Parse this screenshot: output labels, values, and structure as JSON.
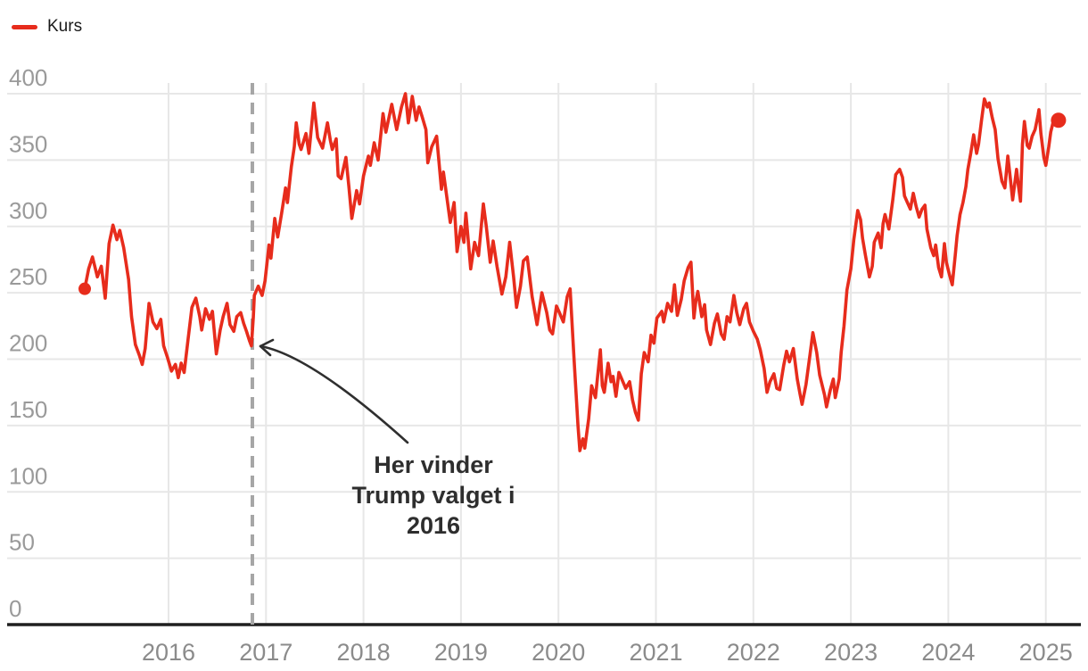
{
  "legend": {
    "label": "Kurs"
  },
  "annotation": {
    "lines": [
      "Her vinder",
      "Trump valget i",
      "2016"
    ]
  },
  "colors": {
    "series": "#e72c1c",
    "event_line": "#a6a6a6",
    "grid": "#e7e7e7",
    "axis": "#1f1f1f",
    "y_tick": "#9a9a9a",
    "x_tick": "#8b8b8b",
    "annotation_text": "#2e2e2e",
    "arrow": "#2f2f2f",
    "background": "#ffffff"
  },
  "chart_data": {
    "type": "line",
    "title": "",
    "xlabel": "",
    "ylabel": "",
    "x_ticks": [
      2016,
      2017,
      2018,
      2019,
      2020,
      2021,
      2022,
      2023,
      2024,
      2025
    ],
    "y_ticks": [
      0,
      50,
      100,
      150,
      200,
      250,
      300,
      350,
      400
    ],
    "ylim": [
      0,
      400
    ],
    "xlim": [
      2014.35,
      2025.36
    ],
    "grid": true,
    "legend_position": "top-left",
    "event_line_x": 2016.86,
    "start_marker": true,
    "end_marker": true,
    "series": [
      {
        "name": "Kurs",
        "color": "#e72c1c",
        "points": [
          [
            2015.14,
            253
          ],
          [
            2015.18,
            268
          ],
          [
            2015.22,
            277
          ],
          [
            2015.27,
            262
          ],
          [
            2015.31,
            270
          ],
          [
            2015.35,
            246
          ],
          [
            2015.39,
            287
          ],
          [
            2015.43,
            301
          ],
          [
            2015.47,
            290
          ],
          [
            2015.5,
            297
          ],
          [
            2015.54,
            284
          ],
          [
            2015.59,
            260
          ],
          [
            2015.62,
            232
          ],
          [
            2015.66,
            211
          ],
          [
            2015.7,
            203
          ],
          [
            2015.73,
            196
          ],
          [
            2015.76,
            208
          ],
          [
            2015.8,
            242
          ],
          [
            2015.84,
            228
          ],
          [
            2015.88,
            223
          ],
          [
            2015.92,
            230
          ],
          [
            2015.95,
            210
          ],
          [
            2015.99,
            201
          ],
          [
            2016.03,
            191
          ],
          [
            2016.07,
            196
          ],
          [
            2016.1,
            186
          ],
          [
            2016.13,
            197
          ],
          [
            2016.16,
            190
          ],
          [
            2016.2,
            215
          ],
          [
            2016.24,
            239
          ],
          [
            2016.28,
            246
          ],
          [
            2016.32,
            232
          ],
          [
            2016.34,
            222
          ],
          [
            2016.38,
            238
          ],
          [
            2016.42,
            230
          ],
          [
            2016.45,
            236
          ],
          [
            2016.49,
            204
          ],
          [
            2016.53,
            222
          ],
          [
            2016.56,
            232
          ],
          [
            2016.6,
            242
          ],
          [
            2016.63,
            226
          ],
          [
            2016.67,
            221
          ],
          [
            2016.7,
            232
          ],
          [
            2016.74,
            235
          ],
          [
            2016.77,
            227
          ],
          [
            2016.8,
            221
          ],
          [
            2016.83,
            214
          ],
          [
            2016.85,
            210
          ],
          [
            2016.87,
            232
          ],
          [
            2016.88,
            248
          ],
          [
            2016.92,
            255
          ],
          [
            2016.96,
            248
          ],
          [
            2016.99,
            259
          ],
          [
            2017.03,
            286
          ],
          [
            2017.05,
            276
          ],
          [
            2017.09,
            306
          ],
          [
            2017.12,
            292
          ],
          [
            2017.16,
            310
          ],
          [
            2017.2,
            329
          ],
          [
            2017.22,
            318
          ],
          [
            2017.26,
            345
          ],
          [
            2017.29,
            360
          ],
          [
            2017.31,
            378
          ],
          [
            2017.34,
            362
          ],
          [
            2017.36,
            358
          ],
          [
            2017.41,
            370
          ],
          [
            2017.44,
            355
          ],
          [
            2017.49,
            393
          ],
          [
            2017.53,
            367
          ],
          [
            2017.58,
            359
          ],
          [
            2017.63,
            378
          ],
          [
            2017.66,
            365
          ],
          [
            2017.68,
            358
          ],
          [
            2017.72,
            366
          ],
          [
            2017.74,
            338
          ],
          [
            2017.77,
            336
          ],
          [
            2017.82,
            352
          ],
          [
            2017.85,
            330
          ],
          [
            2017.88,
            306
          ],
          [
            2017.93,
            327
          ],
          [
            2017.96,
            317
          ],
          [
            2018,
            338
          ],
          [
            2018.05,
            353
          ],
          [
            2018.07,
            346
          ],
          [
            2018.11,
            363
          ],
          [
            2018.15,
            350
          ],
          [
            2018.2,
            385
          ],
          [
            2018.23,
            371
          ],
          [
            2018.29,
            392
          ],
          [
            2018.34,
            373
          ],
          [
            2018.39,
            390
          ],
          [
            2018.43,
            400
          ],
          [
            2018.46,
            378
          ],
          [
            2018.5,
            398
          ],
          [
            2018.54,
            380
          ],
          [
            2018.57,
            390
          ],
          [
            2018.6,
            383
          ],
          [
            2018.64,
            373
          ],
          [
            2018.66,
            348
          ],
          [
            2018.7,
            360
          ],
          [
            2018.75,
            368
          ],
          [
            2018.8,
            328
          ],
          [
            2018.82,
            341
          ],
          [
            2018.89,
            303
          ],
          [
            2018.93,
            318
          ],
          [
            2018.96,
            281
          ],
          [
            2019,
            300
          ],
          [
            2019.03,
            288
          ],
          [
            2019.05,
            310
          ],
          [
            2019.1,
            268
          ],
          [
            2019.14,
            288
          ],
          [
            2019.18,
            278
          ],
          [
            2019.23,
            317
          ],
          [
            2019.26,
            300
          ],
          [
            2019.3,
            273
          ],
          [
            2019.33,
            289
          ],
          [
            2019.37,
            270
          ],
          [
            2019.42,
            249
          ],
          [
            2019.46,
            262
          ],
          [
            2019.5,
            288
          ],
          [
            2019.54,
            262
          ],
          [
            2019.57,
            239
          ],
          [
            2019.61,
            255
          ],
          [
            2019.64,
            274
          ],
          [
            2019.68,
            277
          ],
          [
            2019.73,
            247
          ],
          [
            2019.78,
            226
          ],
          [
            2019.83,
            250
          ],
          [
            2019.88,
            235
          ],
          [
            2019.91,
            222
          ],
          [
            2019.94,
            219
          ],
          [
            2019.98,
            240
          ],
          [
            2020.01,
            235
          ],
          [
            2020.05,
            228
          ],
          [
            2020.09,
            247
          ],
          [
            2020.12,
            253
          ],
          [
            2020.16,
            200
          ],
          [
            2020.2,
            150
          ],
          [
            2020.22,
            131
          ],
          [
            2020.25,
            140
          ],
          [
            2020.27,
            133
          ],
          [
            2020.31,
            155
          ],
          [
            2020.34,
            180
          ],
          [
            2020.38,
            171
          ],
          [
            2020.43,
            207
          ],
          [
            2020.45,
            180
          ],
          [
            2020.47,
            175
          ],
          [
            2020.51,
            197
          ],
          [
            2020.54,
            183
          ],
          [
            2020.56,
            187
          ],
          [
            2020.59,
            172
          ],
          [
            2020.62,
            190
          ],
          [
            2020.65,
            185
          ],
          [
            2020.69,
            178
          ],
          [
            2020.73,
            183
          ],
          [
            2020.76,
            169
          ],
          [
            2020.79,
            160
          ],
          [
            2020.82,
            154
          ],
          [
            2020.85,
            189
          ],
          [
            2020.88,
            205
          ],
          [
            2020.92,
            198
          ],
          [
            2020.95,
            218
          ],
          [
            2020.98,
            212
          ],
          [
            2021.01,
            231
          ],
          [
            2021.06,
            236
          ],
          [
            2021.08,
            228
          ],
          [
            2021.12,
            242
          ],
          [
            2021.16,
            236
          ],
          [
            2021.19,
            256
          ],
          [
            2021.22,
            233
          ],
          [
            2021.26,
            245
          ],
          [
            2021.29,
            259
          ],
          [
            2021.33,
            269
          ],
          [
            2021.36,
            273
          ],
          [
            2021.39,
            231
          ],
          [
            2021.41,
            244
          ],
          [
            2021.43,
            251
          ],
          [
            2021.47,
            232
          ],
          [
            2021.5,
            241
          ],
          [
            2021.52,
            222
          ],
          [
            2021.56,
            211
          ],
          [
            2021.6,
            227
          ],
          [
            2021.63,
            234
          ],
          [
            2021.67,
            219
          ],
          [
            2021.7,
            215
          ],
          [
            2021.73,
            232
          ],
          [
            2021.76,
            228
          ],
          [
            2021.8,
            248
          ],
          [
            2021.83,
            235
          ],
          [
            2021.86,
            226
          ],
          [
            2021.9,
            238
          ],
          [
            2021.93,
            242
          ],
          [
            2021.96,
            228
          ],
          [
            2022,
            221
          ],
          [
            2022.04,
            215
          ],
          [
            2022.07,
            207
          ],
          [
            2022.11,
            193
          ],
          [
            2022.14,
            175
          ],
          [
            2022.17,
            183
          ],
          [
            2022.21,
            189
          ],
          [
            2022.24,
            178
          ],
          [
            2022.27,
            177
          ],
          [
            2022.31,
            195
          ],
          [
            2022.34,
            206
          ],
          [
            2022.37,
            198
          ],
          [
            2022.41,
            208
          ],
          [
            2022.45,
            185
          ],
          [
            2022.48,
            173
          ],
          [
            2022.5,
            166
          ],
          [
            2022.54,
            181
          ],
          [
            2022.58,
            203
          ],
          [
            2022.61,
            220
          ],
          [
            2022.65,
            205
          ],
          [
            2022.68,
            188
          ],
          [
            2022.73,
            173
          ],
          [
            2022.75,
            164
          ],
          [
            2022.79,
            177
          ],
          [
            2022.82,
            185
          ],
          [
            2022.84,
            171
          ],
          [
            2022.88,
            185
          ],
          [
            2022.9,
            205
          ],
          [
            2022.93,
            225
          ],
          [
            2022.96,
            252
          ],
          [
            2023,
            268
          ],
          [
            2023.03,
            290
          ],
          [
            2023.07,
            312
          ],
          [
            2023.1,
            305
          ],
          [
            2023.12,
            291
          ],
          [
            2023.15,
            278
          ],
          [
            2023.19,
            262
          ],
          [
            2023.22,
            270
          ],
          [
            2023.24,
            288
          ],
          [
            2023.28,
            295
          ],
          [
            2023.31,
            284
          ],
          [
            2023.33,
            302
          ],
          [
            2023.35,
            309
          ],
          [
            2023.39,
            298
          ],
          [
            2023.43,
            320
          ],
          [
            2023.46,
            339
          ],
          [
            2023.5,
            343
          ],
          [
            2023.53,
            337
          ],
          [
            2023.55,
            323
          ],
          [
            2023.58,
            318
          ],
          [
            2023.61,
            313
          ],
          [
            2023.64,
            325
          ],
          [
            2023.67,
            315
          ],
          [
            2023.7,
            307
          ],
          [
            2023.73,
            313
          ],
          [
            2023.76,
            316
          ],
          [
            2023.78,
            298
          ],
          [
            2023.82,
            284
          ],
          [
            2023.85,
            278
          ],
          [
            2023.87,
            286
          ],
          [
            2023.9,
            269
          ],
          [
            2023.93,
            262
          ],
          [
            2023.96,
            287
          ],
          [
            2023.98,
            273
          ],
          [
            2024.01,
            264
          ],
          [
            2024.04,
            256
          ],
          [
            2024.07,
            278
          ],
          [
            2024.09,
            293
          ],
          [
            2024.12,
            309
          ],
          [
            2024.15,
            318
          ],
          [
            2024.18,
            330
          ],
          [
            2024.2,
            343
          ],
          [
            2024.23,
            355
          ],
          [
            2024.26,
            369
          ],
          [
            2024.29,
            355
          ],
          [
            2024.31,
            362
          ],
          [
            2024.34,
            380
          ],
          [
            2024.37,
            396
          ],
          [
            2024.4,
            390
          ],
          [
            2024.42,
            393
          ],
          [
            2024.45,
            382
          ],
          [
            2024.48,
            373
          ],
          [
            2024.51,
            351
          ],
          [
            2024.55,
            334
          ],
          [
            2024.58,
            329
          ],
          [
            2024.61,
            353
          ],
          [
            2024.63,
            340
          ],
          [
            2024.66,
            320
          ],
          [
            2024.7,
            343
          ],
          [
            2024.72,
            330
          ],
          [
            2024.74,
            319
          ],
          [
            2024.76,
            362
          ],
          [
            2024.78,
            379
          ],
          [
            2024.81,
            361
          ],
          [
            2024.83,
            359
          ],
          [
            2024.86,
            368
          ],
          [
            2024.89,
            373
          ],
          [
            2024.92,
            384
          ],
          [
            2024.93,
            388
          ],
          [
            2024.95,
            370
          ],
          [
            2024.98,
            352
          ],
          [
            2025,
            346
          ],
          [
            2025.03,
            360
          ],
          [
            2025.05,
            371
          ],
          [
            2025.08,
            380
          ],
          [
            2025.11,
            378
          ],
          [
            2025.13,
            380
          ]
        ]
      }
    ]
  }
}
